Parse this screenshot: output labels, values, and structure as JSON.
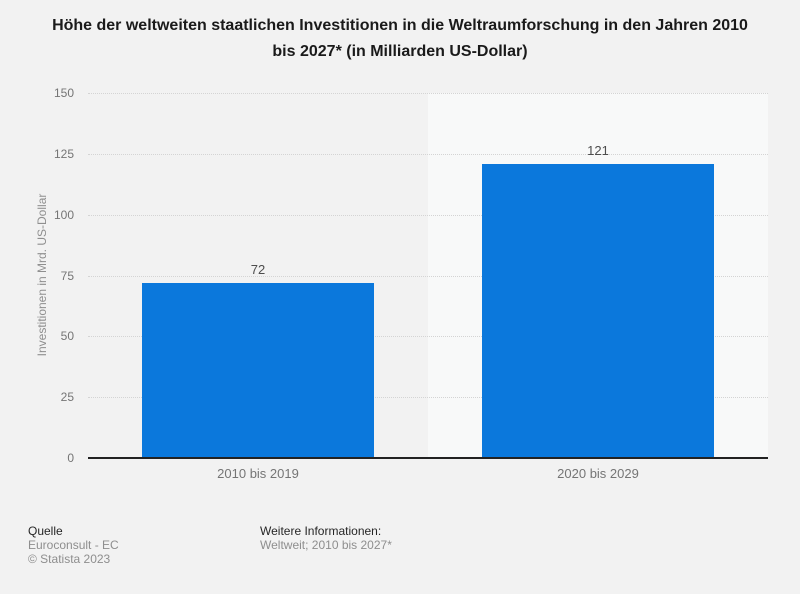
{
  "title": "Höhe der weltweiten staatlichen Investitionen in die Weltraumforschung in den Jahren 2010 bis 2027* (in Milliarden US-Dollar)",
  "chart_data": {
    "type": "bar",
    "categories": [
      "2010 bis 2019",
      "2020 bis 2029"
    ],
    "values": [
      72,
      121
    ],
    "title": "Höhe der weltweiten staatlichen Investitionen in die Weltraumforschung in den Jahren 2010 bis 2027* (in Milliarden US-Dollar)",
    "xlabel": "",
    "ylabel": "Investitionen in Mrd. US-Dollar",
    "ylim": [
      0,
      150
    ],
    "yticks": [
      0,
      25,
      50,
      75,
      100,
      125,
      150
    ],
    "grid": true,
    "legend": false
  },
  "colors": {
    "bar": "#0b78dc",
    "background": "#f2f2f2",
    "band_alt": "#f8f9f9",
    "gridline": "#d4d4d4",
    "axis_line": "#222222",
    "value_label": "#4d4d4d",
    "tick_label": "#757575",
    "axis_title": "#8f8f8f"
  },
  "footer": {
    "source_label": "Quelle",
    "source_value": "Euroconsult - EC",
    "copyright": "© Statista 2023",
    "info_label": "Weitere Informationen:",
    "info_value": "Weltweit; 2010 bis 2027*"
  }
}
